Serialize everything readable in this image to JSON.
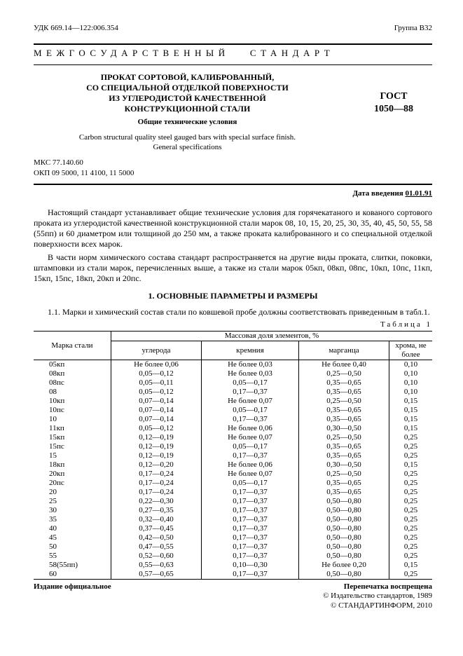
{
  "header": {
    "udk": "УДК 669.14—122:006.354",
    "group": "Группа  В32",
    "banner_left": "МЕЖГОСУДАРСТВЕННЫЙ",
    "banner_right": "СТАНДАРТ"
  },
  "title": {
    "ru_line1": "ПРОКАТ  СОРТОВОЙ, КАЛИБРОВАННЫЙ,",
    "ru_line2": "СО СПЕЦИАЛЬНОЙ ОТДЕЛКОЙ ПОВЕРХНОСТИ",
    "ru_line3": "ИЗ УГЛЕРОДИСТОЙ КАЧЕСТВЕННОЙ",
    "ru_line4": "КОНСТРУКЦИОННОЙ СТАЛИ",
    "subtitle": "Общие технические условия",
    "en_line1": "Carbon structural quality steel gauged bars with special surface finish.",
    "en_line2": "General specifications",
    "gost_label": "ГОСТ",
    "gost_num": "1050—88"
  },
  "codes": {
    "mks": "МКС 77.140.60",
    "okp": "ОКП  09  5000,  11  4100,  11  5000"
  },
  "date": {
    "label": "Дата введения ",
    "value": "01.01.91"
  },
  "paras": {
    "p1": "Настоящий стандарт устанавливает общие технические условия для горячекатаного и кованого сортового проката из углеродистой качественной конструкционной стали марок 08, 10, 15, 20, 25, 30, 35, 40, 45, 50, 55, 58 (55пп) и 60 диаметром или толщиной до 250 мм, а также проката калиброванного и со специальной отделкой поверхности всех марок.",
    "p2": "В части норм химического состава стандарт распространяется на другие виды проката, слитки, поковки, штамповки из стали марок, перечисленных выше, а также из стали марок 05кп, 08кп, 08пс, 10кп, 10пс, 11кп, 15кп, 15пс, 18кп, 20кп и 20пс."
  },
  "section1": {
    "title": "1.  ОСНОВНЫЕ ПАРАМЕТРЫ И РАЗМЕРЫ",
    "p": "1.1.  Марки и химический состав стали по ковшевой пробе должны соответствовать приведенным в табл.1.",
    "table_label": "Таблица 1"
  },
  "table": {
    "mass_header": "Массовая доля элементов, %",
    "col_grade": "Марка стали",
    "col_c": "углерода",
    "col_si": "кремния",
    "col_mn": "марганца",
    "col_cr": "хрома, не более",
    "rows": [
      [
        "05кп",
        "Не более 0,06",
        "Не более 0,03",
        "Не более 0,40",
        "0,10"
      ],
      [
        "08кп",
        "0,05—0,12",
        "Не более 0,03",
        "0,25—0,50",
        "0,10"
      ],
      [
        "08пс",
        "0,05—0,11",
        "0,05—0,17",
        "0,35—0,65",
        "0,10"
      ],
      [
        "08",
        "0,05—0,12",
        "0,17—0,37",
        "0,35—0,65",
        "0,10"
      ],
      [
        "10кп",
        "0,07—0,14",
        "Не более 0,07",
        "0,25—0,50",
        "0,15"
      ],
      [
        "10пс",
        "0,07—0,14",
        "0,05—0,17",
        "0,35—0,65",
        "0,15"
      ],
      [
        "10",
        "0,07—0,14",
        "0,17—0,37",
        "0,35—0,65",
        "0,15"
      ],
      [
        "11кп",
        "0,05—0,12",
        "Не более 0,06",
        "0,30—0,50",
        "0,15"
      ],
      [
        "15кп",
        "0,12—0,19",
        "Не более 0,07",
        "0,25—0,50",
        "0,25"
      ],
      [
        "15пс",
        "0,12—0,19",
        "0,05—0,17",
        "0,35—0,65",
        "0,25"
      ],
      [
        "15",
        "0,12—0,19",
        "0,17—0,37",
        "0,35—0,65",
        "0,25"
      ],
      [
        "18кп",
        "0,12—0,20",
        "Не более 0,06",
        "0,30—0,50",
        "0,15"
      ],
      [
        "20кп",
        "0,17—0,24",
        "Не более 0,07",
        "0,25—0,50",
        "0,25"
      ],
      [
        "20пс",
        "0,17—0,24",
        "0,05—0,17",
        "0,35—0,65",
        "0,25"
      ],
      [
        "20",
        "0,17—0,24",
        "0,17—0,37",
        "0,35—0,65",
        "0,25"
      ],
      [
        "25",
        "0,22—0,30",
        "0,17—0,37",
        "0,50—0,80",
        "0,25"
      ],
      [
        "30",
        "0,27—0,35",
        "0,17—0,37",
        "0,50—0,80",
        "0,25"
      ],
      [
        "35",
        "0,32—0,40",
        "0,17—0,37",
        "0,50—0,80",
        "0,25"
      ],
      [
        "40",
        "0,37—0,45",
        "0,17—0,37",
        "0,50—0,80",
        "0,25"
      ],
      [
        "45",
        "0,42—0,50",
        "0,17—0,37",
        "0,50—0,80",
        "0,25"
      ],
      [
        "50",
        "0,47—0,55",
        "0,17—0,37",
        "0,50—0,80",
        "0,25"
      ],
      [
        "55",
        "0,52—0,60",
        "0,17—0,37",
        "0,50—0,80",
        "0,25"
      ],
      [
        "58(55пп)",
        "0,55—0,63",
        "0,10—0,30",
        "Не более 0,20",
        "0,15"
      ],
      [
        "60",
        "0,57—0,65",
        "0,17—0,37",
        "0,50—0,80",
        "0,25"
      ]
    ]
  },
  "footer": {
    "left": "Издание официальное",
    "right1": "Перепечатка воспрещена",
    "right2": "© Издательство стандартов, 1989",
    "right3": "© СТАНДАРТИНФОРМ, 2010"
  }
}
